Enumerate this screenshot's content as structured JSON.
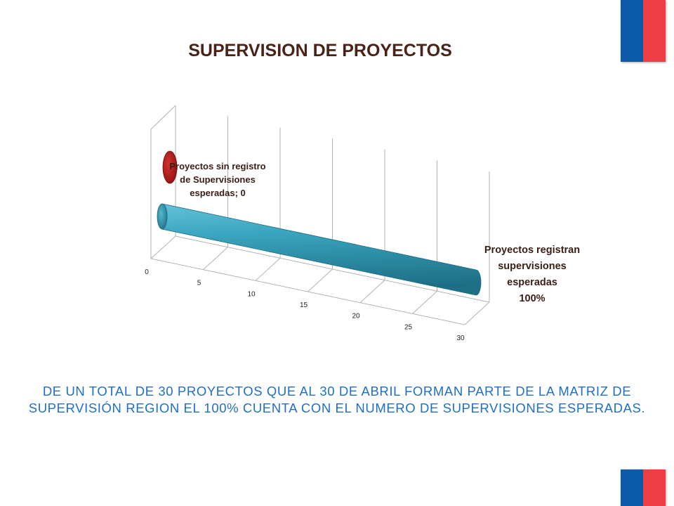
{
  "page": {
    "title": "SUPERVISION DE PROYECTOS",
    "caption": "DE UN TOTAL DE 30 PROYECTOS QUE AL 30 DE ABRIL FORMAN PARTE DE LA MATRIZ DE SUPERVISIÓN REGION EL 100% CUENTA CON EL NUMERO DE SUPERVISIONES ESPERADAS."
  },
  "colors": {
    "flag_blue": "#0b5aa8",
    "flag_red": "#ee3e43",
    "bar_teal": "#2f9bb7",
    "bar_red": "#b01a1a",
    "title": "#4a2318",
    "caption": "#1f6fc9"
  },
  "chart_data": {
    "type": "bar",
    "orientation": "horizontal-3d-cylinder",
    "categories": [
      "Proyectos sin registro de Supervisiones esperadas",
      "Proyectos registran supervisiones esperadas"
    ],
    "values": [
      0,
      30
    ],
    "data_labels": [
      [
        "Proyectos sin registro",
        "de Supervisiones",
        "esperadas; 0"
      ],
      [
        "Proyectos registran",
        "supervisiones",
        "esperadas",
        "100%"
      ]
    ],
    "ticks": [
      "0",
      "5",
      "10",
      "15",
      "20",
      "25",
      "30"
    ],
    "xlim": [
      0,
      30
    ],
    "grid": true,
    "legend": "none"
  }
}
